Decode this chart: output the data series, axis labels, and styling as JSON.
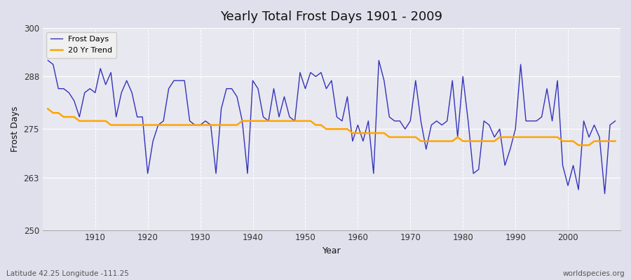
{
  "title": "Yearly Total Frost Days 1901 - 2009",
  "xlabel": "Year",
  "ylabel": "Frost Days",
  "footnote_left": "Latitude 42.25 Longitude -111.25",
  "footnote_right": "worldspecies.org",
  "ylim": [
    250,
    300
  ],
  "yticks": [
    250,
    263,
    275,
    288,
    300
  ],
  "years": [
    1901,
    1902,
    1903,
    1904,
    1905,
    1906,
    1907,
    1908,
    1909,
    1910,
    1911,
    1912,
    1913,
    1914,
    1915,
    1916,
    1917,
    1918,
    1919,
    1920,
    1921,
    1922,
    1923,
    1924,
    1925,
    1926,
    1927,
    1928,
    1929,
    1930,
    1931,
    1932,
    1933,
    1934,
    1935,
    1936,
    1937,
    1938,
    1939,
    1940,
    1941,
    1942,
    1943,
    1944,
    1945,
    1946,
    1947,
    1948,
    1949,
    1950,
    1951,
    1952,
    1953,
    1954,
    1955,
    1956,
    1957,
    1958,
    1959,
    1960,
    1961,
    1962,
    1963,
    1964,
    1965,
    1966,
    1967,
    1968,
    1969,
    1970,
    1971,
    1972,
    1973,
    1974,
    1975,
    1976,
    1977,
    1978,
    1979,
    1980,
    1981,
    1982,
    1983,
    1984,
    1985,
    1986,
    1987,
    1988,
    1989,
    1990,
    1991,
    1992,
    1993,
    1994,
    1995,
    1996,
    1997,
    1998,
    1999,
    2000,
    2001,
    2002,
    2003,
    2004,
    2005,
    2006,
    2007,
    2008,
    2009
  ],
  "frost_days": [
    292,
    291,
    285,
    285,
    284,
    282,
    278,
    284,
    285,
    284,
    290,
    286,
    289,
    278,
    284,
    287,
    284,
    278,
    278,
    264,
    272,
    276,
    277,
    285,
    287,
    287,
    287,
    277,
    276,
    276,
    277,
    276,
    264,
    280,
    285,
    285,
    283,
    277,
    264,
    287,
    285,
    278,
    277,
    285,
    278,
    283,
    278,
    277,
    289,
    285,
    289,
    288,
    289,
    285,
    287,
    278,
    277,
    283,
    272,
    276,
    272,
    277,
    264,
    292,
    287,
    278,
    277,
    277,
    275,
    277,
    287,
    277,
    270,
    276,
    277,
    276,
    277,
    287,
    273,
    288,
    277,
    264,
    265,
    277,
    276,
    273,
    275,
    266,
    270,
    275,
    291,
    277,
    277,
    277,
    278,
    285,
    277,
    287,
    266,
    261,
    266,
    260,
    277,
    273,
    276,
    273,
    259,
    276,
    277
  ],
  "trend_years": [
    1901,
    1902,
    1903,
    1904,
    1905,
    1906,
    1907,
    1908,
    1909,
    1910,
    1911,
    1912,
    1913,
    1914,
    1915,
    1916,
    1917,
    1918,
    1919,
    1920,
    1921,
    1922,
    1923,
    1924,
    1925,
    1926,
    1927,
    1928,
    1929,
    1930,
    1931,
    1932,
    1933,
    1934,
    1935,
    1936,
    1937,
    1938,
    1939,
    1940,
    1941,
    1942,
    1943,
    1944,
    1945,
    1946,
    1947,
    1948,
    1949,
    1950,
    1951,
    1952,
    1953,
    1954,
    1955,
    1956,
    1957,
    1958,
    1959,
    1960,
    1961,
    1962,
    1963,
    1964,
    1965,
    1966,
    1967,
    1968,
    1969,
    1970,
    1971,
    1972,
    1973,
    1974,
    1975,
    1976,
    1977,
    1978,
    1979,
    1980,
    1981,
    1982,
    1983,
    1984,
    1985,
    1986,
    1987,
    1988,
    1989,
    1990,
    1991,
    1992,
    1993,
    1994,
    1995,
    1996,
    1997,
    1998,
    1999,
    2000,
    2001,
    2002,
    2003,
    2004,
    2005,
    2006,
    2007,
    2008,
    2009
  ],
  "trend_values": [
    280,
    279,
    279,
    278,
    278,
    278,
    277,
    277,
    277,
    277,
    277,
    277,
    276,
    276,
    276,
    276,
    276,
    276,
    276,
    276,
    276,
    276,
    276,
    276,
    276,
    276,
    276,
    276,
    276,
    276,
    276,
    276,
    276,
    276,
    276,
    276,
    276,
    277,
    277,
    277,
    277,
    277,
    277,
    277,
    277,
    277,
    277,
    277,
    277,
    277,
    277,
    276,
    276,
    275,
    275,
    275,
    275,
    275,
    274,
    274,
    274,
    274,
    274,
    274,
    274,
    273,
    273,
    273,
    273,
    273,
    273,
    272,
    272,
    272,
    272,
    272,
    272,
    272,
    273,
    272,
    272,
    272,
    272,
    272,
    272,
    272,
    273,
    273,
    273,
    273,
    273,
    273,
    273,
    273,
    273,
    273,
    273,
    273,
    272,
    272,
    272,
    271,
    271,
    271,
    272,
    272,
    272,
    272,
    272
  ],
  "line_color": "#3333bb",
  "trend_color": "#FFA500",
  "fig_bg_color": "#e0e0ec",
  "plot_bg_color": "#e8e8f0",
  "grid_color": "#ffffff",
  "legend_bg": "#f0f0f0",
  "xlim_left": 1900,
  "xlim_right": 2010,
  "xticks": [
    1910,
    1920,
    1930,
    1940,
    1950,
    1960,
    1970,
    1980,
    1990,
    2000
  ]
}
